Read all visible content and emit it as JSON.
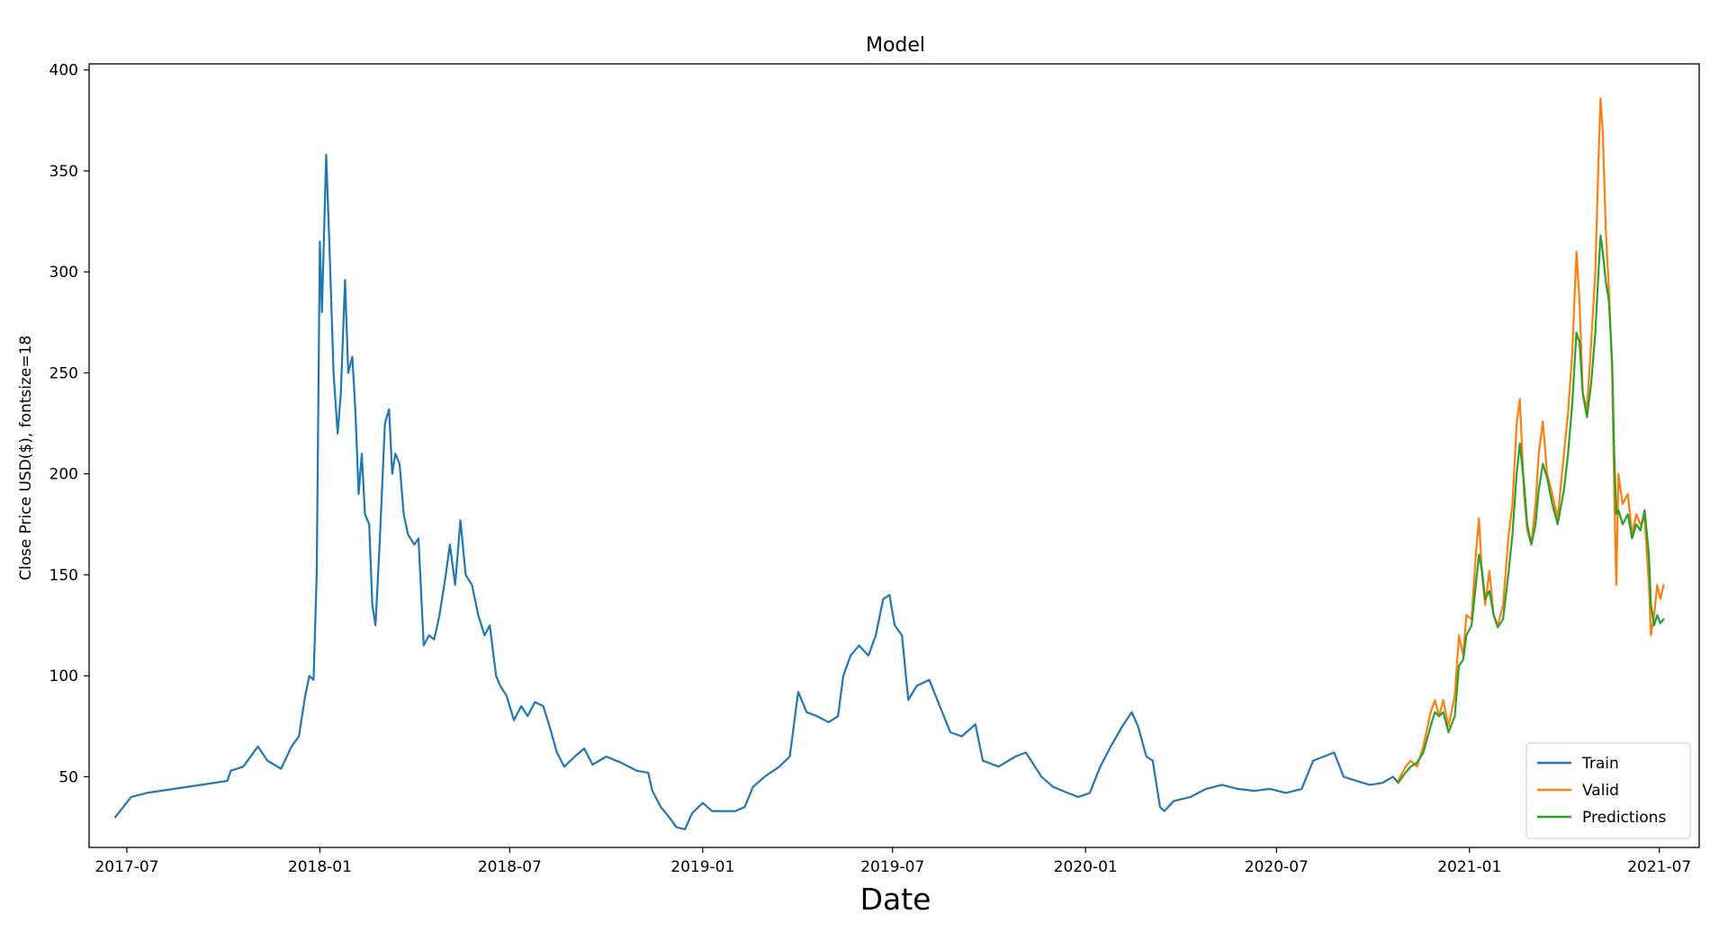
{
  "chart_data": {
    "type": "line",
    "title": "Model",
    "xlabel": "Date",
    "ylabel": "Close Price USD($), fontsize=18",
    "xlim": [
      "2017-05-26",
      "2021-08-08"
    ],
    "ylim": [
      15,
      403
    ],
    "xticks": [
      {
        "date": "2017-07-01",
        "label": "2017-07"
      },
      {
        "date": "2018-01-01",
        "label": "2018-01"
      },
      {
        "date": "2018-07-01",
        "label": "2018-07"
      },
      {
        "date": "2019-01-01",
        "label": "2019-01"
      },
      {
        "date": "2019-07-01",
        "label": "2019-07"
      },
      {
        "date": "2020-01-01",
        "label": "2020-01"
      },
      {
        "date": "2020-07-01",
        "label": "2020-07"
      },
      {
        "date": "2021-01-01",
        "label": "2021-01"
      },
      {
        "date": "2021-07-01",
        "label": "2021-07"
      }
    ],
    "yticks": [
      50,
      100,
      150,
      200,
      250,
      300,
      350,
      400
    ],
    "grid": false,
    "legend": "bottom-right",
    "series": [
      {
        "name": "Train",
        "color": "#1f77b4",
        "points": [
          [
            "2017-06-20",
            30
          ],
          [
            "2017-07-05",
            40
          ],
          [
            "2017-07-20",
            42
          ],
          [
            "2017-08-15",
            44
          ],
          [
            "2017-09-10",
            46
          ],
          [
            "2017-10-05",
            48
          ],
          [
            "2017-10-08",
            53
          ],
          [
            "2017-10-20",
            55
          ],
          [
            "2017-11-03",
            65
          ],
          [
            "2017-11-12",
            58
          ],
          [
            "2017-11-25",
            54
          ],
          [
            "2017-12-05",
            65
          ],
          [
            "2017-12-12",
            70
          ],
          [
            "2017-12-18",
            90
          ],
          [
            "2017-12-22",
            100
          ],
          [
            "2017-12-26",
            98
          ],
          [
            "2017-12-29",
            150
          ],
          [
            "2018-01-01",
            315
          ],
          [
            "2018-01-03",
            280
          ],
          [
            "2018-01-07",
            358
          ],
          [
            "2018-01-10",
            315
          ],
          [
            "2018-01-14",
            250
          ],
          [
            "2018-01-18",
            220
          ],
          [
            "2018-01-21",
            240
          ],
          [
            "2018-01-25",
            296
          ],
          [
            "2018-01-28",
            250
          ],
          [
            "2018-02-01",
            258
          ],
          [
            "2018-02-04",
            230
          ],
          [
            "2018-02-07",
            190
          ],
          [
            "2018-02-10",
            210
          ],
          [
            "2018-02-13",
            180
          ],
          [
            "2018-02-17",
            175
          ],
          [
            "2018-02-20",
            135
          ],
          [
            "2018-02-23",
            125
          ],
          [
            "2018-02-27",
            165
          ],
          [
            "2018-03-04",
            225
          ],
          [
            "2018-03-08",
            232
          ],
          [
            "2018-03-11",
            200
          ],
          [
            "2018-03-14",
            210
          ],
          [
            "2018-03-18",
            205
          ],
          [
            "2018-03-22",
            180
          ],
          [
            "2018-03-26",
            170
          ],
          [
            "2018-04-01",
            165
          ],
          [
            "2018-04-05",
            168
          ],
          [
            "2018-04-10",
            115
          ],
          [
            "2018-04-15",
            120
          ],
          [
            "2018-04-20",
            118
          ],
          [
            "2018-04-25",
            130
          ],
          [
            "2018-05-01",
            150
          ],
          [
            "2018-05-05",
            165
          ],
          [
            "2018-05-10",
            145
          ],
          [
            "2018-05-15",
            177
          ],
          [
            "2018-05-20",
            150
          ],
          [
            "2018-05-26",
            145
          ],
          [
            "2018-06-01",
            130
          ],
          [
            "2018-06-07",
            120
          ],
          [
            "2018-06-12",
            125
          ],
          [
            "2018-06-18",
            100
          ],
          [
            "2018-06-22",
            95
          ],
          [
            "2018-06-28",
            90
          ],
          [
            "2018-07-05",
            78
          ],
          [
            "2018-07-12",
            85
          ],
          [
            "2018-07-18",
            80
          ],
          [
            "2018-07-25",
            87
          ],
          [
            "2018-08-02",
            85
          ],
          [
            "2018-08-08",
            75
          ],
          [
            "2018-08-15",
            62
          ],
          [
            "2018-08-22",
            55
          ],
          [
            "2018-09-01",
            60
          ],
          [
            "2018-09-10",
            64
          ],
          [
            "2018-09-18",
            56
          ],
          [
            "2018-10-01",
            60
          ],
          [
            "2018-10-15",
            57
          ],
          [
            "2018-10-30",
            53
          ],
          [
            "2018-11-10",
            52
          ],
          [
            "2018-11-14",
            43
          ],
          [
            "2018-11-22",
            35
          ],
          [
            "2018-11-30",
            30
          ],
          [
            "2018-12-07",
            25
          ],
          [
            "2018-12-15",
            24
          ],
          [
            "2018-12-22",
            32
          ],
          [
            "2019-01-01",
            37
          ],
          [
            "2019-01-10",
            33
          ],
          [
            "2019-01-20",
            33
          ],
          [
            "2019-02-01",
            33
          ],
          [
            "2019-02-10",
            35
          ],
          [
            "2019-02-18",
            45
          ],
          [
            "2019-03-01",
            50
          ],
          [
            "2019-03-15",
            55
          ],
          [
            "2019-03-25",
            60
          ],
          [
            "2019-04-02",
            92
          ],
          [
            "2019-04-10",
            82
          ],
          [
            "2019-04-20",
            80
          ],
          [
            "2019-05-01",
            77
          ],
          [
            "2019-05-10",
            80
          ],
          [
            "2019-05-15",
            100
          ],
          [
            "2019-05-22",
            110
          ],
          [
            "2019-05-30",
            115
          ],
          [
            "2019-06-08",
            110
          ],
          [
            "2019-06-15",
            120
          ],
          [
            "2019-06-22",
            138
          ],
          [
            "2019-06-28",
            140
          ],
          [
            "2019-07-03",
            125
          ],
          [
            "2019-07-10",
            120
          ],
          [
            "2019-07-16",
            88
          ],
          [
            "2019-07-24",
            95
          ],
          [
            "2019-08-05",
            98
          ],
          [
            "2019-08-15",
            85
          ],
          [
            "2019-08-25",
            72
          ],
          [
            "2019-09-05",
            70
          ],
          [
            "2019-09-18",
            76
          ],
          [
            "2019-09-25",
            58
          ],
          [
            "2019-10-10",
            55
          ],
          [
            "2019-10-26",
            60
          ],
          [
            "2019-11-05",
            62
          ],
          [
            "2019-11-20",
            50
          ],
          [
            "2019-12-01",
            45
          ],
          [
            "2019-12-15",
            42
          ],
          [
            "2019-12-25",
            40
          ],
          [
            "2020-01-05",
            42
          ],
          [
            "2020-01-15",
            55
          ],
          [
            "2020-01-25",
            65
          ],
          [
            "2020-02-05",
            75
          ],
          [
            "2020-02-14",
            82
          ],
          [
            "2020-02-20",
            75
          ],
          [
            "2020-02-28",
            60
          ],
          [
            "2020-03-05",
            58
          ],
          [
            "2020-03-12",
            35
          ],
          [
            "2020-03-16",
            33
          ],
          [
            "2020-03-25",
            38
          ],
          [
            "2020-04-10",
            40
          ],
          [
            "2020-04-25",
            44
          ],
          [
            "2020-05-10",
            46
          ],
          [
            "2020-05-25",
            44
          ],
          [
            "2020-06-10",
            43
          ],
          [
            "2020-06-25",
            44
          ],
          [
            "2020-07-10",
            42
          ],
          [
            "2020-07-25",
            44
          ],
          [
            "2020-08-05",
            58
          ],
          [
            "2020-08-15",
            60
          ],
          [
            "2020-08-25",
            62
          ],
          [
            "2020-09-03",
            50
          ],
          [
            "2020-09-15",
            48
          ],
          [
            "2020-09-28",
            46
          ],
          [
            "2020-10-10",
            47
          ],
          [
            "2020-10-20",
            50
          ],
          [
            "2020-10-25",
            47
          ]
        ]
      },
      {
        "name": "Valid",
        "color": "#ff7f0e",
        "points": [
          [
            "2020-10-25",
            48
          ],
          [
            "2020-11-01",
            55
          ],
          [
            "2020-11-06",
            58
          ],
          [
            "2020-11-12",
            55
          ],
          [
            "2020-11-18",
            65
          ],
          [
            "2020-11-25",
            82
          ],
          [
            "2020-11-29",
            88
          ],
          [
            "2020-12-03",
            80
          ],
          [
            "2020-12-07",
            88
          ],
          [
            "2020-12-12",
            75
          ],
          [
            "2020-12-18",
            90
          ],
          [
            "2020-12-22",
            120
          ],
          [
            "2020-12-26",
            110
          ],
          [
            "2020-12-29",
            130
          ],
          [
            "2021-01-03",
            128
          ],
          [
            "2021-01-07",
            160
          ],
          [
            "2021-01-10",
            178
          ],
          [
            "2021-01-13",
            150
          ],
          [
            "2021-01-16",
            135
          ],
          [
            "2021-01-20",
            152
          ],
          [
            "2021-01-24",
            130
          ],
          [
            "2021-01-28",
            125
          ],
          [
            "2021-02-02",
            135
          ],
          [
            "2021-02-07",
            168
          ],
          [
            "2021-02-11",
            185
          ],
          [
            "2021-02-15",
            225
          ],
          [
            "2021-02-18",
            237
          ],
          [
            "2021-02-22",
            190
          ],
          [
            "2021-02-25",
            172
          ],
          [
            "2021-03-01",
            165
          ],
          [
            "2021-03-05",
            185
          ],
          [
            "2021-03-08",
            210
          ],
          [
            "2021-03-12",
            226
          ],
          [
            "2021-03-16",
            200
          ],
          [
            "2021-03-21",
            190
          ],
          [
            "2021-03-26",
            178
          ],
          [
            "2021-04-01",
            210
          ],
          [
            "2021-04-05",
            230
          ],
          [
            "2021-04-09",
            260
          ],
          [
            "2021-04-13",
            310
          ],
          [
            "2021-04-16",
            285
          ],
          [
            "2021-04-19",
            240
          ],
          [
            "2021-04-23",
            232
          ],
          [
            "2021-04-27",
            265
          ],
          [
            "2021-05-01",
            300
          ],
          [
            "2021-05-04",
            355
          ],
          [
            "2021-05-06",
            386
          ],
          [
            "2021-05-08",
            370
          ],
          [
            "2021-05-11",
            320
          ],
          [
            "2021-05-14",
            290
          ],
          [
            "2021-05-17",
            250
          ],
          [
            "2021-05-19",
            190
          ],
          [
            "2021-05-21",
            145
          ],
          [
            "2021-05-23",
            200
          ],
          [
            "2021-05-27",
            185
          ],
          [
            "2021-06-01",
            190
          ],
          [
            "2021-06-05",
            170
          ],
          [
            "2021-06-09",
            180
          ],
          [
            "2021-06-13",
            175
          ],
          [
            "2021-06-17",
            178
          ],
          [
            "2021-06-21",
            145
          ],
          [
            "2021-06-23",
            120
          ],
          [
            "2021-06-26",
            130
          ],
          [
            "2021-06-29",
            145
          ],
          [
            "2021-07-02",
            138
          ],
          [
            "2021-07-05",
            145
          ]
        ]
      },
      {
        "name": "Predictions",
        "color": "#2ca02c",
        "points": [
          [
            "2020-10-25",
            47
          ],
          [
            "2020-11-01",
            52
          ],
          [
            "2020-11-06",
            55
          ],
          [
            "2020-11-12",
            57
          ],
          [
            "2020-11-18",
            62
          ],
          [
            "2020-11-25",
            75
          ],
          [
            "2020-11-29",
            82
          ],
          [
            "2020-12-03",
            80
          ],
          [
            "2020-12-07",
            82
          ],
          [
            "2020-12-12",
            72
          ],
          [
            "2020-12-18",
            80
          ],
          [
            "2020-12-22",
            105
          ],
          [
            "2020-12-26",
            108
          ],
          [
            "2020-12-29",
            120
          ],
          [
            "2021-01-03",
            125
          ],
          [
            "2021-01-07",
            145
          ],
          [
            "2021-01-10",
            160
          ],
          [
            "2021-01-13",
            152
          ],
          [
            "2021-01-16",
            138
          ],
          [
            "2021-01-20",
            142
          ],
          [
            "2021-01-24",
            130
          ],
          [
            "2021-01-28",
            124
          ],
          [
            "2021-02-02",
            128
          ],
          [
            "2021-02-07",
            150
          ],
          [
            "2021-02-11",
            170
          ],
          [
            "2021-02-15",
            200
          ],
          [
            "2021-02-18",
            215
          ],
          [
            "2021-02-22",
            195
          ],
          [
            "2021-02-25",
            175
          ],
          [
            "2021-03-01",
            165
          ],
          [
            "2021-03-05",
            175
          ],
          [
            "2021-03-08",
            192
          ],
          [
            "2021-03-12",
            205
          ],
          [
            "2021-03-16",
            198
          ],
          [
            "2021-03-21",
            185
          ],
          [
            "2021-03-26",
            175
          ],
          [
            "2021-04-01",
            192
          ],
          [
            "2021-04-05",
            210
          ],
          [
            "2021-04-09",
            235
          ],
          [
            "2021-04-13",
            270
          ],
          [
            "2021-04-16",
            265
          ],
          [
            "2021-04-19",
            240
          ],
          [
            "2021-04-23",
            228
          ],
          [
            "2021-04-27",
            245
          ],
          [
            "2021-05-01",
            270
          ],
          [
            "2021-05-04",
            300
          ],
          [
            "2021-05-06",
            318
          ],
          [
            "2021-05-08",
            310
          ],
          [
            "2021-05-11",
            295
          ],
          [
            "2021-05-14",
            285
          ],
          [
            "2021-05-17",
            255
          ],
          [
            "2021-05-19",
            210
          ],
          [
            "2021-05-21",
            180
          ],
          [
            "2021-05-23",
            182
          ],
          [
            "2021-05-27",
            175
          ],
          [
            "2021-06-01",
            180
          ],
          [
            "2021-06-05",
            168
          ],
          [
            "2021-06-09",
            175
          ],
          [
            "2021-06-13",
            172
          ],
          [
            "2021-06-17",
            182
          ],
          [
            "2021-06-21",
            160
          ],
          [
            "2021-06-23",
            135
          ],
          [
            "2021-06-26",
            125
          ],
          [
            "2021-06-29",
            130
          ],
          [
            "2021-07-02",
            126
          ],
          [
            "2021-07-05",
            128
          ]
        ]
      }
    ]
  }
}
